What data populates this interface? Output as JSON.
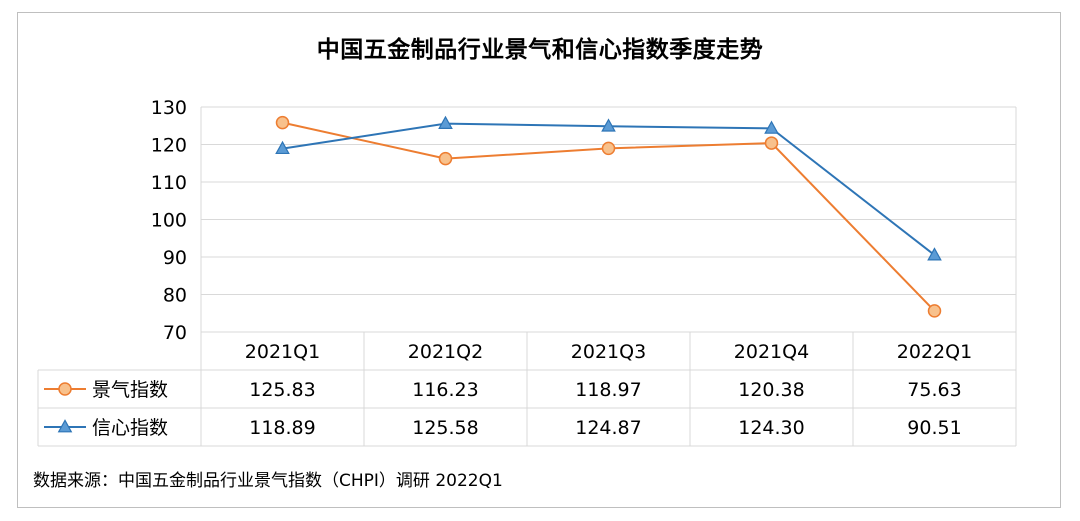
{
  "chart_data": {
    "type": "line",
    "title": "中国五金制品行业景气和信心指数季度走势",
    "categories": [
      "2021Q1",
      "2021Q2",
      "2021Q3",
      "2021Q4",
      "2022Q1"
    ],
    "series": [
      {
        "name": "景气指数",
        "values": [
          125.83,
          116.23,
          118.97,
          120.38,
          75.63
        ],
        "labels": [
          "125.83",
          "116.23",
          "118.97",
          "120.38",
          "75.63"
        ],
        "color": "#ED7D31",
        "marker": "circle",
        "marker_fill": "#F8C18C"
      },
      {
        "name": "信心指数",
        "values": [
          118.89,
          125.58,
          124.87,
          124.3,
          90.51
        ],
        "labels": [
          "118.89",
          "125.58",
          "124.87",
          "124.30",
          "90.51"
        ],
        "color": "#2E75B6",
        "marker": "triangle",
        "marker_fill": "#5B9BD5"
      }
    ],
    "ylim": [
      70,
      130
    ],
    "yticks": [
      "70",
      "80",
      "90",
      "100",
      "110",
      "120",
      "130"
    ],
    "grid": true,
    "legend": "data-table"
  },
  "source": "数据来源：中国五金制品行业景气指数（CHPI）调研 2022Q1"
}
